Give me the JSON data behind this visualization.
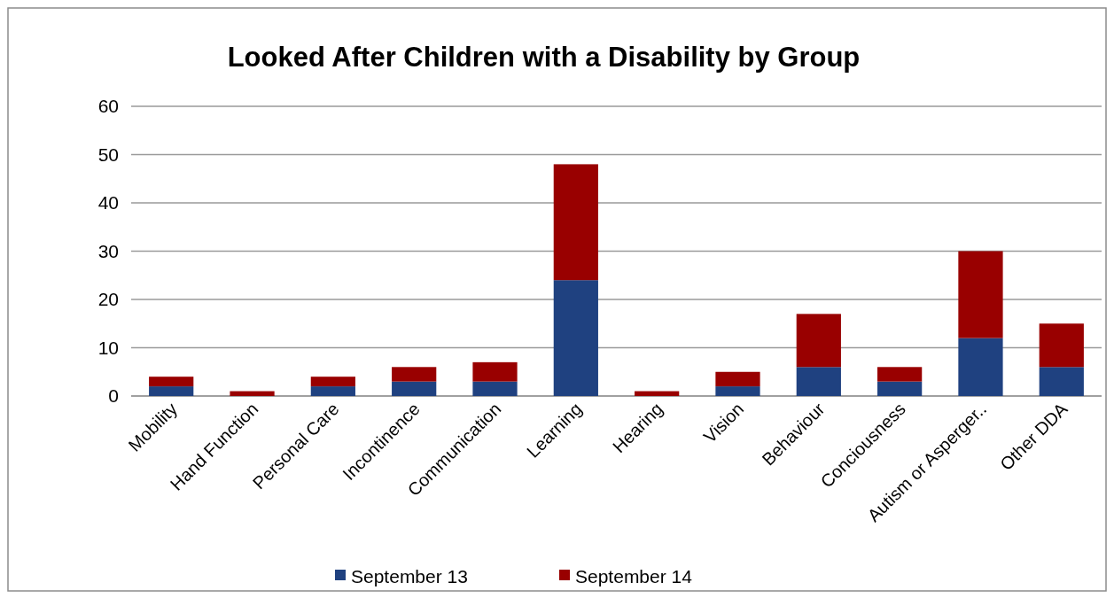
{
  "chart_data": {
    "type": "bar",
    "title": "Looked After Children with a Disability by Group",
    "categories": [
      "Mobility",
      "Hand Function",
      "Personal Care",
      "Incontinence",
      "Communication",
      "Learning",
      "Hearing",
      "Vision",
      "Behaviour",
      "Conciousness",
      "Autism or Asperger..",
      "Other DDA"
    ],
    "series": [
      {
        "name": "September 13",
        "color": "#1f4180",
        "values": [
          2,
          0,
          2,
          3,
          3,
          24,
          0,
          2,
          6,
          3,
          12,
          6
        ]
      },
      {
        "name": "September 14",
        "color": "#990000",
        "values": [
          2,
          1,
          2,
          3,
          4,
          24,
          1,
          3,
          11,
          3,
          18,
          9
        ]
      }
    ],
    "stacked": true,
    "ylim": [
      0,
      60
    ],
    "yticks": [
      0,
      10,
      20,
      30,
      40,
      50,
      60
    ],
    "grid": "y",
    "legend": "bottom"
  }
}
